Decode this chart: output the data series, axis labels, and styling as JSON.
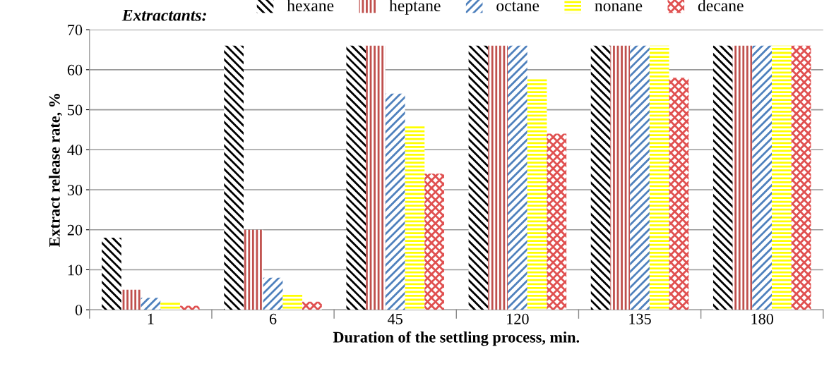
{
  "chart_data": {
    "type": "bar",
    "xlabel": "Duration of the settling process, min.",
    "ylabel": "Extract release rate, %",
    "legend_title": "Extractants:",
    "categories": [
      "1",
      "6",
      "45",
      "120",
      "135",
      "180"
    ],
    "series": [
      {
        "name": "hexane",
        "color": "#000000",
        "values": [
          18,
          66,
          66,
          66,
          66,
          66
        ]
      },
      {
        "name": "heptane",
        "color": "#c0504d",
        "values": [
          5,
          20,
          66,
          66,
          66,
          66
        ]
      },
      {
        "name": "octane",
        "color": "#4f81bd",
        "values": [
          3,
          8,
          54,
          66,
          66,
          66
        ]
      },
      {
        "name": "nonane",
        "color": "#ffff00",
        "values": [
          2,
          4,
          46,
          58,
          66,
          66
        ]
      },
      {
        "name": "decane",
        "color": "#e05050",
        "values": [
          1,
          2,
          34,
          44,
          58,
          66
        ]
      }
    ],
    "ylim": [
      0,
      70
    ],
    "yticks": [
      0,
      10,
      20,
      30,
      40,
      50,
      60,
      70
    ],
    "grid": "y",
    "legend": "top"
  }
}
